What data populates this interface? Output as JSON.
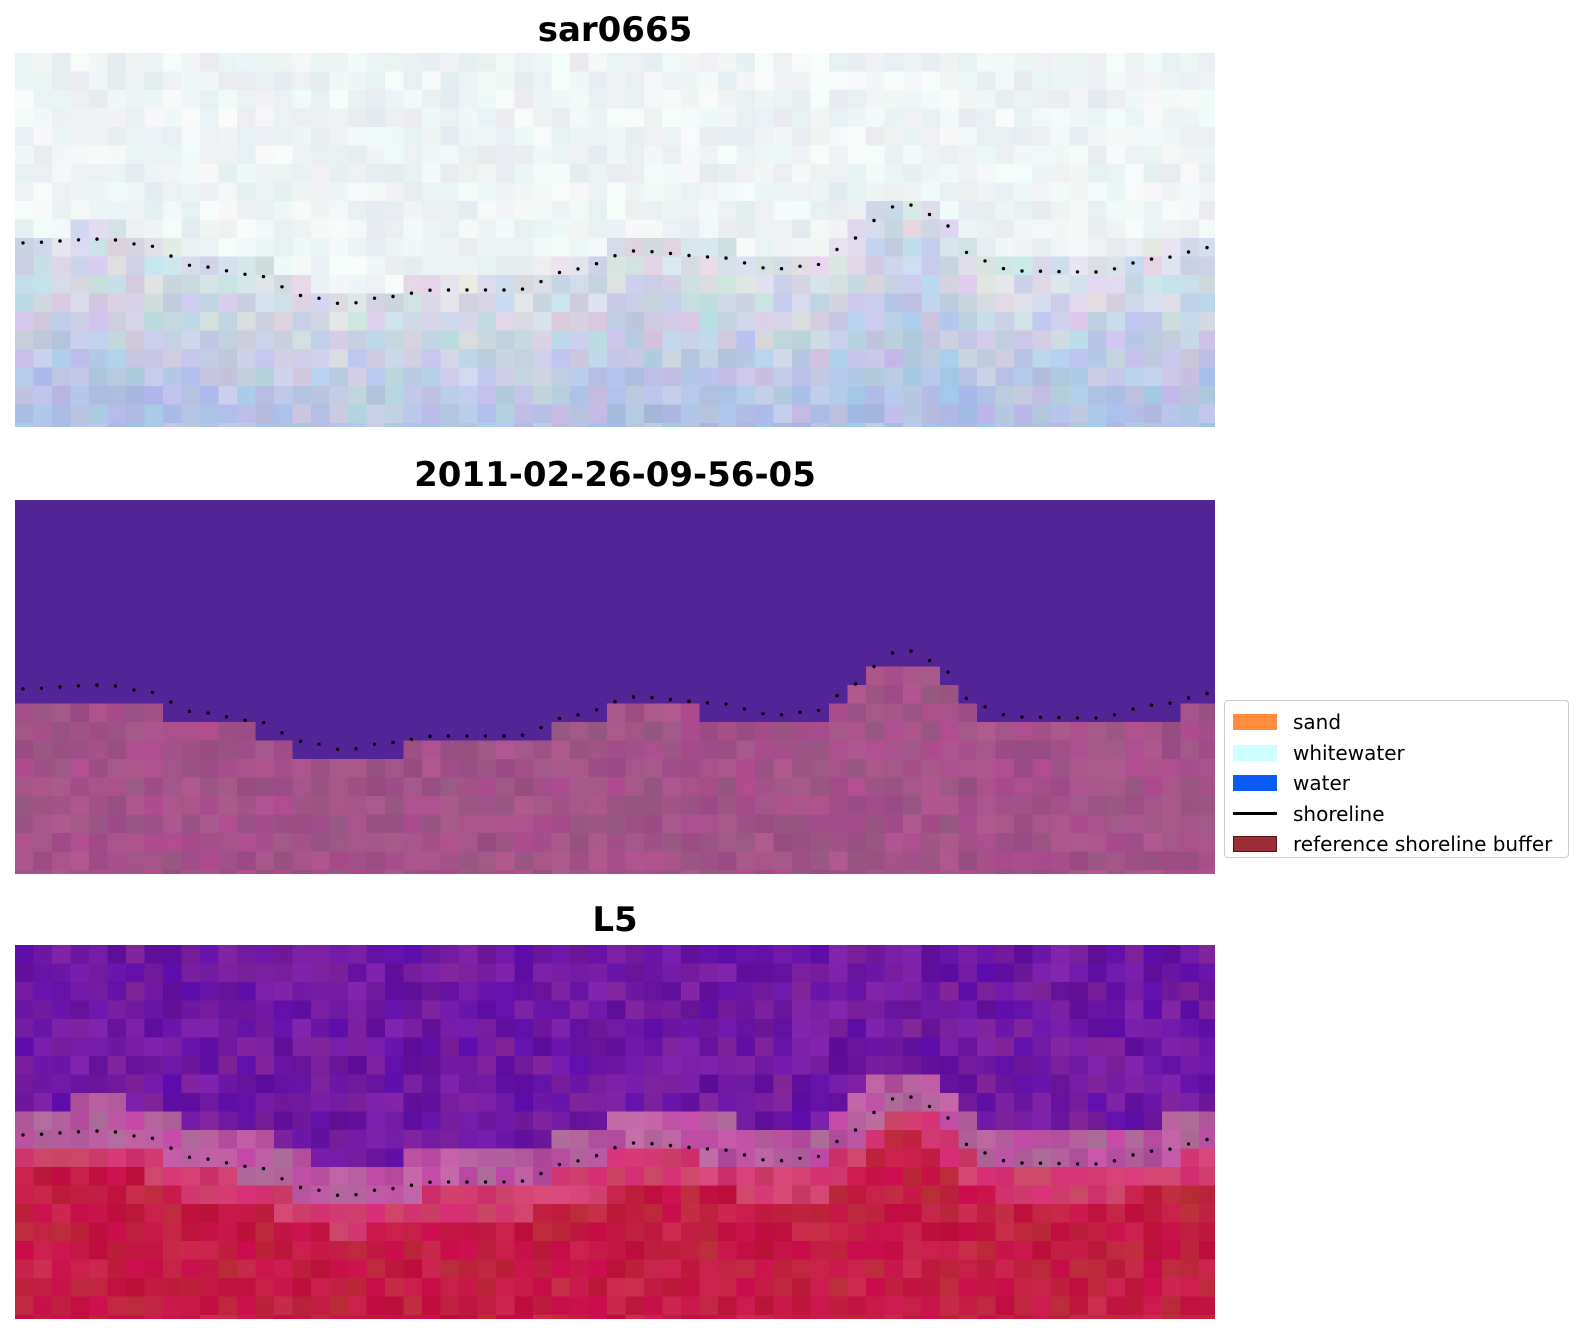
{
  "panels": [
    {
      "title": "sar0665",
      "kind": "rgb"
    },
    {
      "title": "2011-02-26-09-56-05",
      "kind": "classified"
    },
    {
      "title": "L5",
      "kind": "index"
    }
  ],
  "legend": {
    "items": [
      {
        "label": "sand",
        "color": "#ff8c3a",
        "type": "patch"
      },
      {
        "label": "whitewater",
        "color": "#ccffff",
        "type": "patch"
      },
      {
        "label": "water",
        "color": "#0a5cf5",
        "type": "patch"
      },
      {
        "label": "shoreline",
        "color": "#000000",
        "type": "line"
      },
      {
        "label": "reference shoreline buffer",
        "color": "#9c2f35",
        "type": "patch"
      }
    ]
  },
  "colors": {
    "classified_upper": "#532496",
    "classified_lower": "#9a4d88",
    "index_low": "#5c0f9c",
    "index_high": "#bb0f3a"
  }
}
